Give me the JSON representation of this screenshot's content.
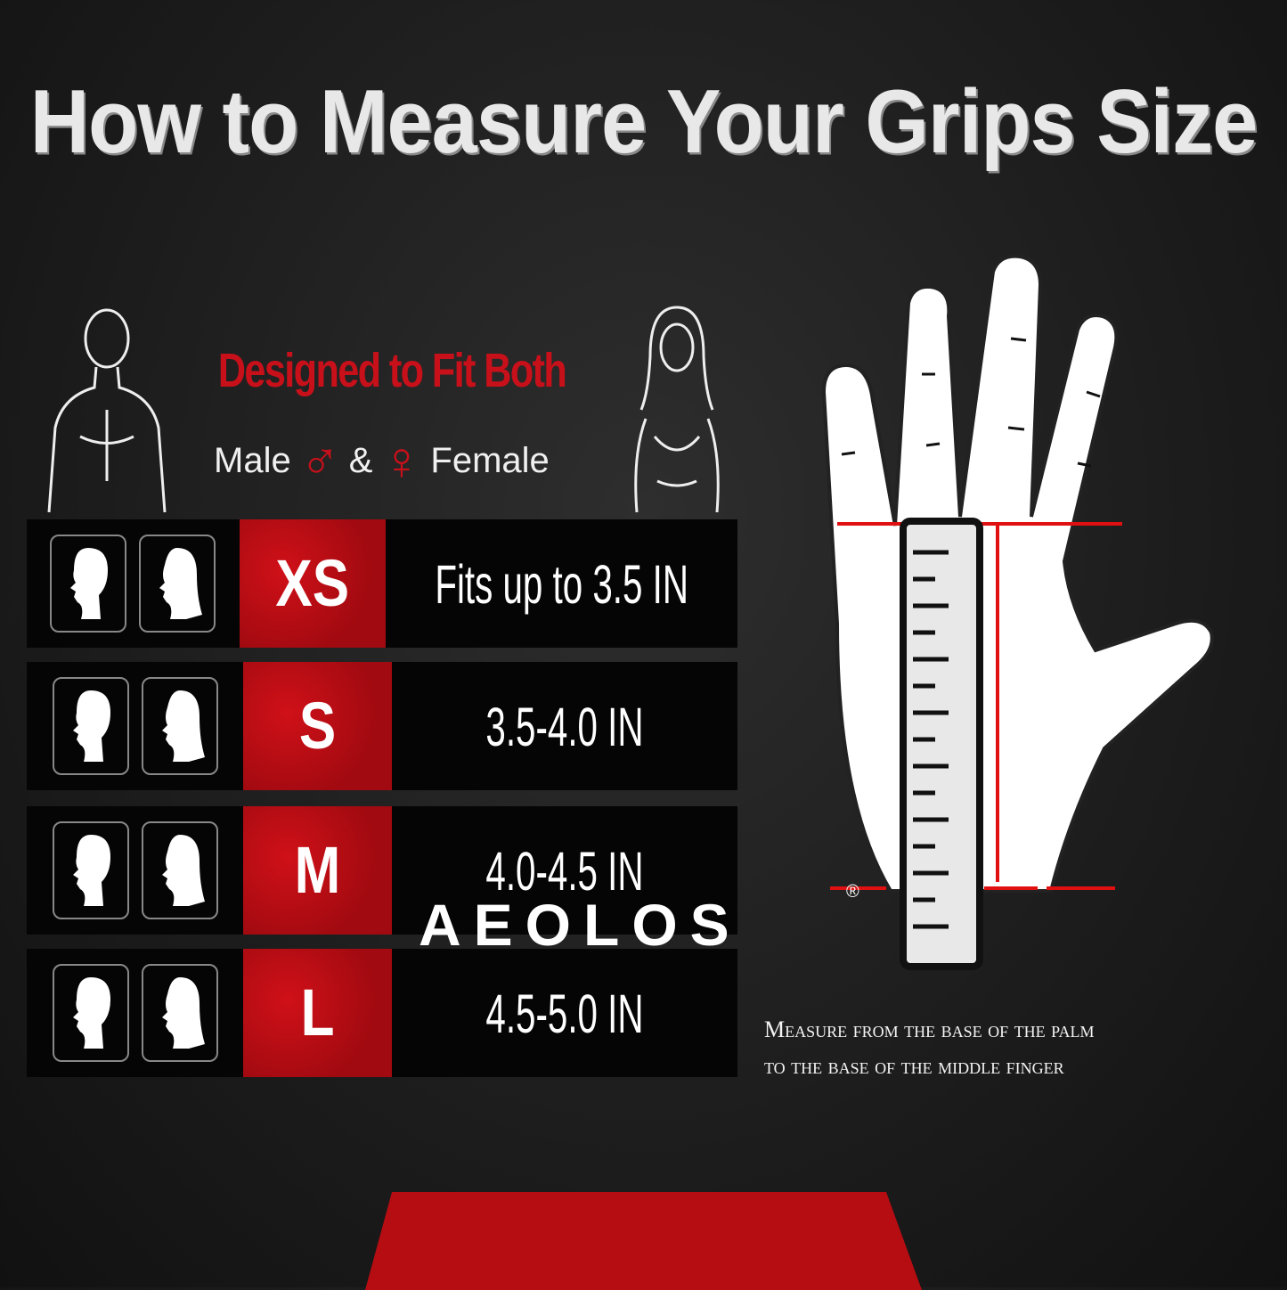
{
  "title": "How to Measure Your Grips Size",
  "fit": {
    "heading": "Designed to Fit Both",
    "male": "Male",
    "and": "&",
    "female": "Female"
  },
  "sizes": [
    {
      "size": "XS",
      "range": "Fits up to 3.5 IN"
    },
    {
      "size": "S",
      "range": "3.5-4.0 IN"
    },
    {
      "size": "M",
      "range": "4.0-4.5 IN"
    },
    {
      "size": "L",
      "range": "4.5-5.0 IN"
    }
  ],
  "caption": {
    "line1": "Measure from the base of the palm",
    "line2": "to the base of the middle finger"
  },
  "brand": {
    "name": "AEOLOS",
    "mark": "®"
  },
  "colors": {
    "accent": "#c8101a",
    "background": "#1c1c1c"
  }
}
